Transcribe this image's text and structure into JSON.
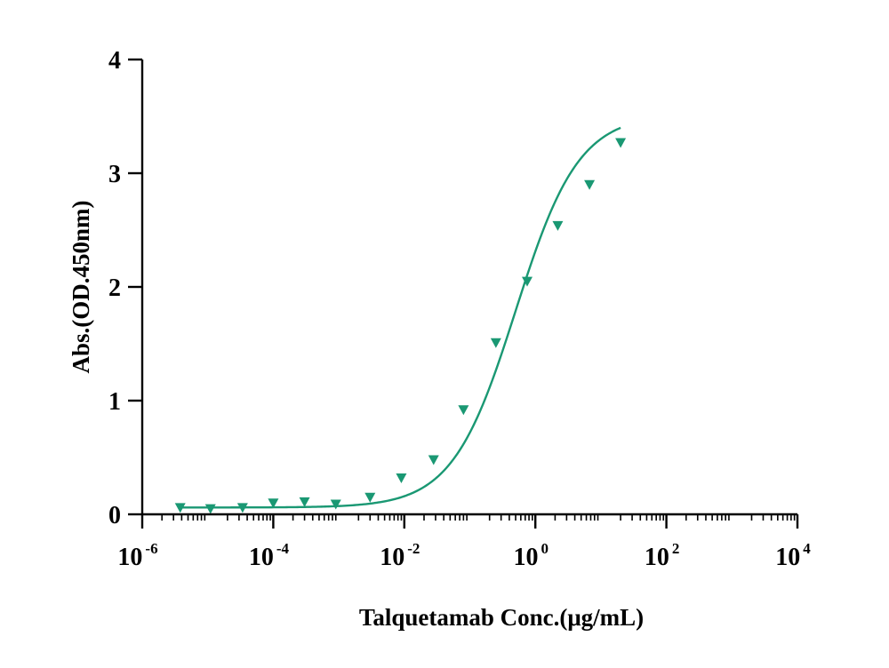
{
  "chart_data": {
    "type": "scatter",
    "title": "",
    "xlabel": "Talquetamab Conc.(μg/mL)",
    "ylabel": "Abs.(OD.450nm)",
    "x_scale": "log",
    "xlim": [
      1e-06,
      10000
    ],
    "ylim": [
      0,
      4
    ],
    "x_ticks": [
      {
        "value": 1e-06,
        "base": "10",
        "exp": "-6"
      },
      {
        "value": 0.0001,
        "base": "10",
        "exp": "-4"
      },
      {
        "value": 0.01,
        "base": "10",
        "exp": "-2"
      },
      {
        "value": 1,
        "base": "10",
        "exp": "0"
      },
      {
        "value": 100,
        "base": "10",
        "exp": "2"
      },
      {
        "value": 10000,
        "base": "10",
        "exp": "4"
      }
    ],
    "y_ticks": [
      {
        "value": 0,
        "label": "0"
      },
      {
        "value": 1,
        "label": "1"
      },
      {
        "value": 2,
        "label": "2"
      },
      {
        "value": 3,
        "label": "3"
      },
      {
        "value": 4,
        "label": "4"
      }
    ],
    "grid": false,
    "legend": "none",
    "series": [
      {
        "color": "#1a9873",
        "marker": "triangle-down",
        "fit": "4PL",
        "fit_params": {
          "bottom": 0.06,
          "top": 3.52,
          "ec50": 0.5,
          "hill": 0.9
        },
        "fit_range": [
          3.8e-06,
          20
        ],
        "points": [
          {
            "x": 3.8e-06,
            "y": 0.06
          },
          {
            "x": 1.1e-05,
            "y": 0.05
          },
          {
            "x": 3.4e-05,
            "y": 0.06
          },
          {
            "x": 0.0001,
            "y": 0.1
          },
          {
            "x": 0.0003,
            "y": 0.11
          },
          {
            "x": 0.0009,
            "y": 0.09
          },
          {
            "x": 0.003,
            "y": 0.15
          },
          {
            "x": 0.009,
            "y": 0.32
          },
          {
            "x": 0.028,
            "y": 0.48
          },
          {
            "x": 0.08,
            "y": 0.92
          },
          {
            "x": 0.25,
            "y": 1.51
          },
          {
            "x": 0.75,
            "y": 2.05
          },
          {
            "x": 2.2,
            "y": 2.54
          },
          {
            "x": 6.7,
            "y": 2.9
          },
          {
            "x": 20,
            "y": 3.27
          }
        ]
      }
    ]
  }
}
